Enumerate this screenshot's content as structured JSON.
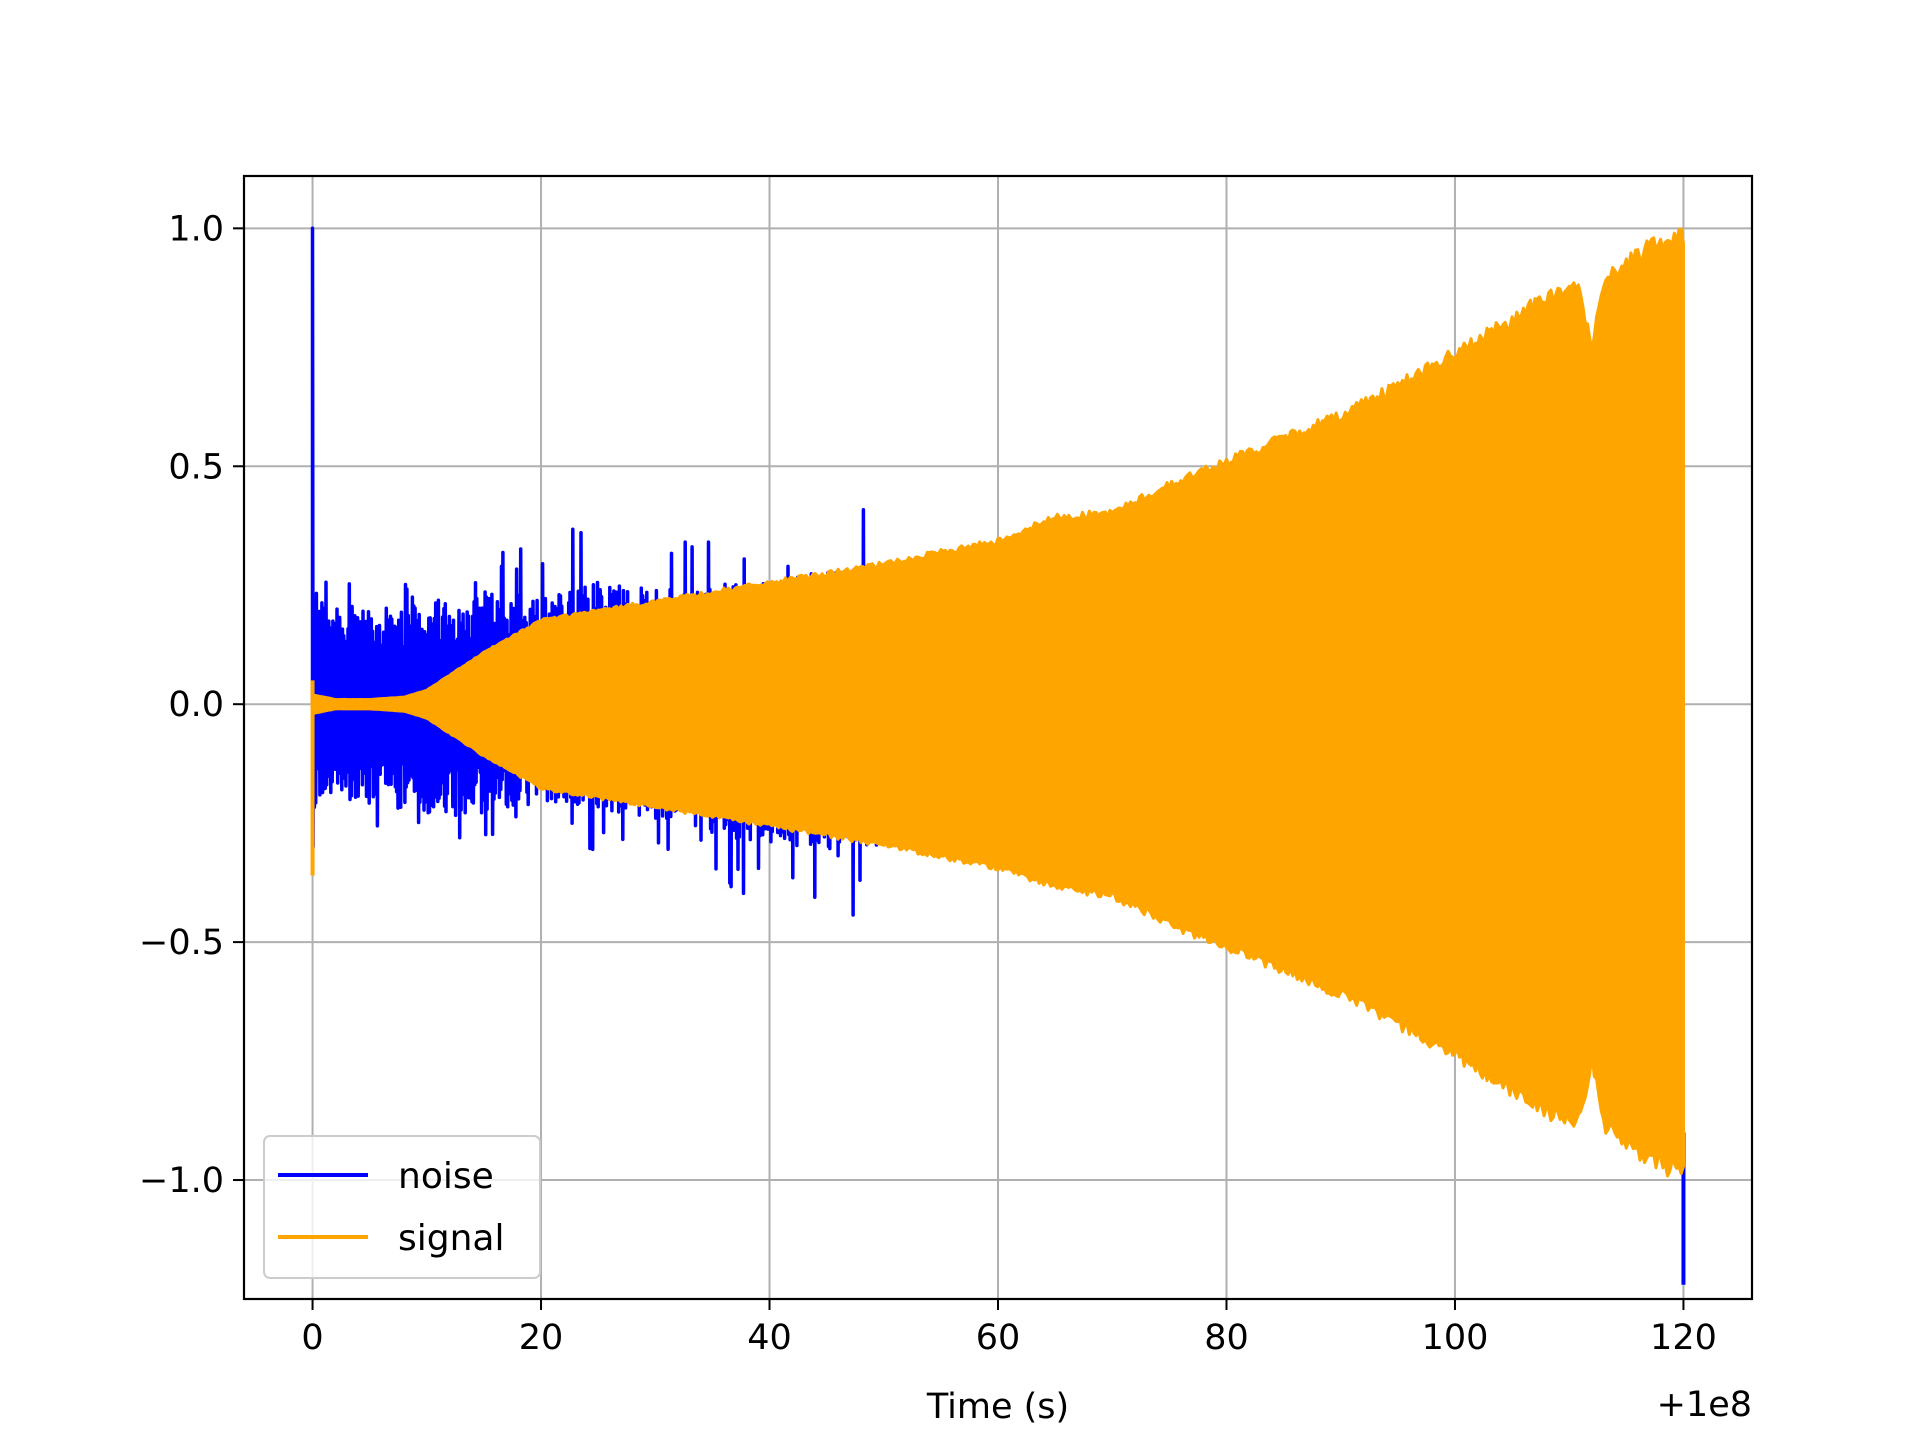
{
  "chart_data": {
    "type": "line",
    "xlabel": "Time (s)",
    "ylabel": "",
    "x_offset_label": "+1e8",
    "xlim": [
      -6,
      126
    ],
    "ylim": [
      -1.25,
      1.11
    ],
    "xticks": [
      0,
      20,
      40,
      60,
      80,
      100,
      120
    ],
    "yticks": [
      1.0,
      0.5,
      0.0,
      -0.5,
      -1.0
    ],
    "ytick_labels": [
      "1.0",
      "0.5",
      "0.0",
      "−0.5",
      "−1.0"
    ],
    "grid": true,
    "legend_position": "lower-left",
    "series": [
      {
        "name": "noise",
        "color": "#0000ff",
        "peak_at_start": 1.0,
        "trough_at_end": -1.22,
        "envelope": {
          "x": [
            0,
            1,
            3,
            5,
            10,
            15,
            20,
            25,
            30,
            35,
            40,
            45,
            50
          ],
          "upper": [
            0.24,
            0.22,
            0.21,
            0.2,
            0.21,
            0.23,
            0.24,
            0.26,
            0.24,
            0.25,
            0.26,
            0.28,
            0.28
          ],
          "lower": [
            -0.22,
            -0.2,
            -0.2,
            -0.21,
            -0.23,
            -0.23,
            -0.21,
            -0.22,
            -0.24,
            -0.27,
            -0.3,
            -0.3,
            -0.31
          ]
        }
      },
      {
        "name": "signal",
        "color": "#ffa500",
        "trough_at_start": -0.36,
        "envelope": {
          "x": [
            0,
            2,
            5,
            8,
            10,
            15,
            20,
            25,
            30,
            40,
            50,
            60,
            65,
            70,
            75,
            80,
            90,
            100,
            110,
            111,
            112,
            113,
            115,
            118,
            120
          ],
          "upper": [
            0.02,
            0.01,
            0.01,
            0.015,
            0.03,
            0.11,
            0.18,
            0.2,
            0.22,
            0.26,
            0.3,
            0.35,
            0.4,
            0.41,
            0.47,
            0.52,
            0.62,
            0.75,
            0.9,
            0.88,
            0.76,
            0.9,
            0.95,
            0.99,
            1.0
          ],
          "lower": [
            -0.02,
            -0.01,
            -0.01,
            -0.015,
            -0.03,
            -0.11,
            -0.18,
            -0.2,
            -0.22,
            -0.26,
            -0.3,
            -0.35,
            -0.39,
            -0.41,
            -0.47,
            -0.52,
            -0.62,
            -0.75,
            -0.9,
            -0.88,
            -0.76,
            -0.9,
            -0.95,
            -0.99,
            -1.0
          ]
        }
      }
    ]
  }
}
